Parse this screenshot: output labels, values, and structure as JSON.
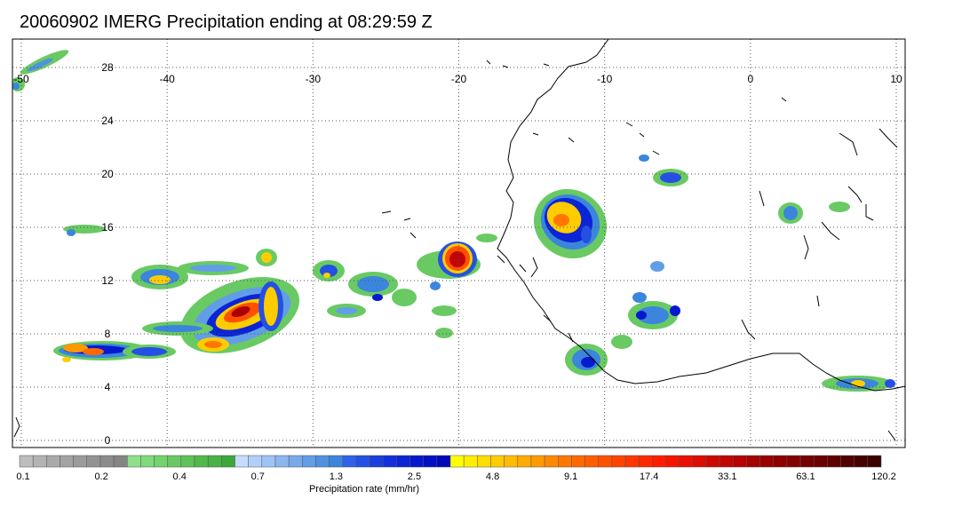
{
  "title": "20060902 IMERG Precipitation ending at 08:29:59 Z",
  "map": {
    "lon_range": [
      -50,
      10
    ],
    "lat_range": [
      0,
      30
    ],
    "lon_ticks": [
      "-50",
      "-40",
      "-30",
      "-20",
      "-10",
      "0",
      "10"
    ],
    "lat_ticks": [
      "28",
      "24",
      "20",
      "16",
      "12",
      "8",
      "4",
      "0"
    ],
    "grid": "dotted",
    "coastline_color": "#000000"
  },
  "colorbar": {
    "label": "Precipitation rate (mm/hr)",
    "tick_labels": [
      "0.1",
      "0.2",
      "0.4",
      "0.7",
      "1.3",
      "2.5",
      "4.8",
      "9.1",
      "17.4",
      "33.1",
      "63.1",
      "120.2"
    ],
    "colors": [
      "#bdbdbd",
      "#b3b3b3",
      "#aaaaaa",
      "#a3a3a3",
      "#9b9b9b",
      "#939393",
      "#8c8c8c",
      "#858585",
      "#8ee08a",
      "#7fda7b",
      "#74d26e",
      "#69ca63",
      "#5ec258",
      "#52ba4d",
      "#48b244",
      "#3da83a",
      "#c6dcff",
      "#b2cffa",
      "#9ec3f5",
      "#8ab7f0",
      "#76aaeb",
      "#629ee6",
      "#4f92e1",
      "#3b86dc",
      "#2e62e8",
      "#2450e3",
      "#1a3edf",
      "#1130db",
      "#0a24d6",
      "#0519cf",
      "#0210c4",
      "#0008b8",
      "#ffff00",
      "#ffee00",
      "#ffdd00",
      "#ffcc00",
      "#ffbb00",
      "#ffaa00",
      "#ff9900",
      "#ff8800",
      "#ff7700",
      "#ff6a00",
      "#ff5d00",
      "#ff5000",
      "#ff4300",
      "#ff3600",
      "#ff2900",
      "#ff1c00",
      "#f51400",
      "#e81000",
      "#db0c00",
      "#ce0800",
      "#c10500",
      "#b40300",
      "#a70100",
      "#9a0000",
      "#8e0000",
      "#820000",
      "#760000",
      "#6a0000",
      "#5e0000",
      "#520000",
      "#460000",
      "#3a0000"
    ]
  }
}
